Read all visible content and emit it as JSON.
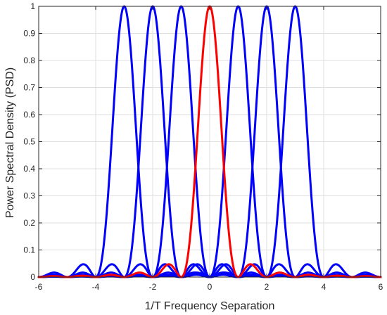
{
  "chart_data": {
    "type": "line",
    "title": "",
    "xlabel": "1/T Frequency Separation",
    "ylabel": "Power Spectral Density (PSD)",
    "xlim": [
      -6,
      6
    ],
    "ylim": [
      0,
      1
    ],
    "grid": true,
    "x_ticks": [
      -6,
      -4,
      -2,
      0,
      2,
      4,
      6
    ],
    "y_ticks": [
      0,
      0.1,
      0.2,
      0.3,
      0.4,
      0.5,
      0.6,
      0.7,
      0.8,
      0.9,
      1
    ],
    "x_tick_labels": [
      "-6",
      "-4",
      "-2",
      "0",
      "2",
      "4",
      "6"
    ],
    "y_tick_labels": [
      "0",
      "0.1",
      "0.2",
      "0.3",
      "0.4",
      "0.5",
      "0.6",
      "0.7",
      "0.8",
      "0.9",
      "1"
    ],
    "function": "sinc^2 of (f - center), main lobe nulls at center ± 1",
    "series": [
      {
        "center": -3,
        "color": "#0000ff"
      },
      {
        "center": -2,
        "color": "#0000ff"
      },
      {
        "center": -1,
        "color": "#0000ff"
      },
      {
        "center": 1,
        "color": "#0000ff"
      },
      {
        "center": 2,
        "color": "#0000ff"
      },
      {
        "center": 3,
        "color": "#0000ff"
      },
      {
        "center": 0,
        "color": "#ff0000"
      }
    ]
  }
}
